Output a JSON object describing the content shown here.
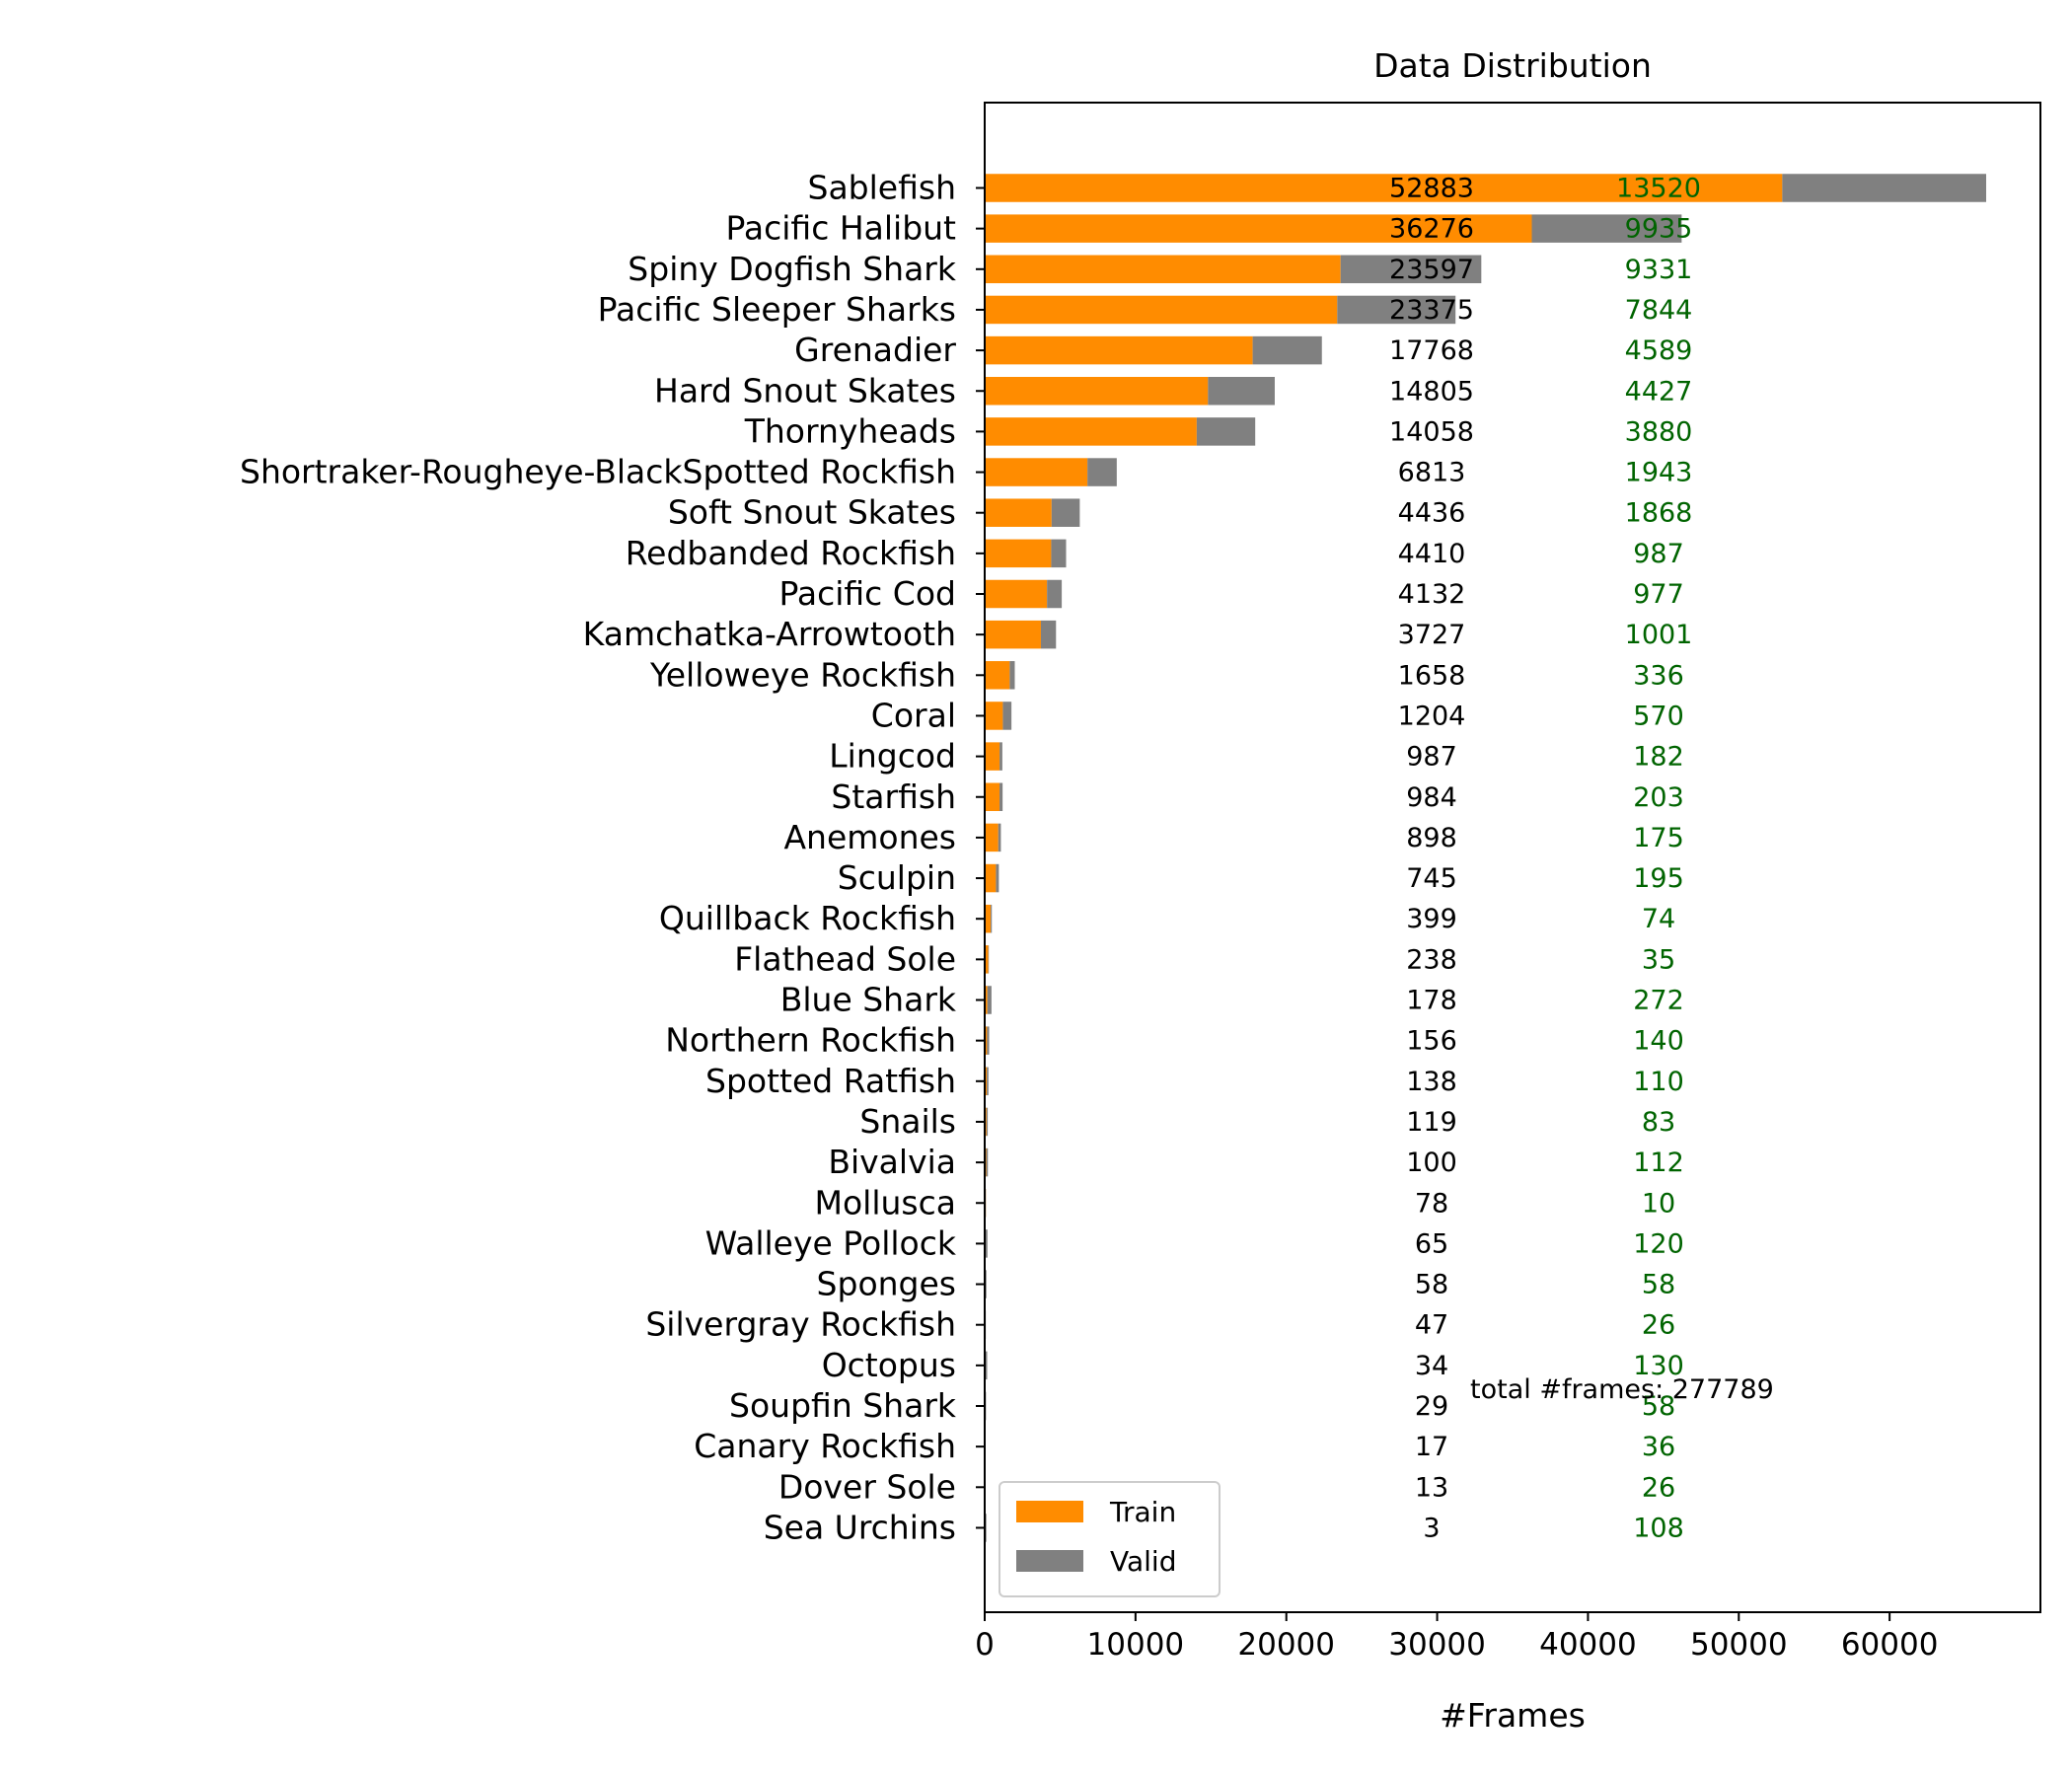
{
  "chart_data": {
    "type": "bar",
    "orientation": "horizontal",
    "stacked": true,
    "title": "Data Distribution",
    "xlabel": "#Frames",
    "ylabel": "",
    "xlim": [
      0,
      70000
    ],
    "xticks": [
      0,
      10000,
      20000,
      30000,
      40000,
      50000,
      60000
    ],
    "grid": false,
    "legend_position": "lower-left",
    "annotation": "total #frames: 277789",
    "categories": [
      "Sablefish",
      "Pacific Halibut",
      "Spiny Dogfish Shark",
      "Pacific Sleeper Sharks",
      "Grenadier",
      "Hard Snout Skates",
      "Thornyheads",
      "Shortraker-Rougheye-BlackSpotted Rockfish",
      "Soft Snout Skates",
      "Redbanded Rockfish",
      "Pacific Cod",
      "Kamchatka-Arrowtooth",
      "Yelloweye Rockfish",
      "Coral",
      "Lingcod",
      "Starfish",
      "Anemones",
      "Sculpin",
      "Quillback Rockfish",
      "Flathead Sole",
      "Blue Shark",
      "Northern Rockfish",
      "Spotted Ratfish",
      "Snails",
      "Bivalvia",
      "Mollusca",
      "Walleye Pollock",
      "Sponges",
      "Silvergray Rockfish",
      "Octopus",
      "Soupfin Shark",
      "Canary Rockfish",
      "Dover Sole",
      "Sea Urchins"
    ],
    "series": [
      {
        "name": "Train",
        "color": "#ff8c00",
        "label_color": "#000000",
        "values": [
          52883,
          36276,
          23597,
          23375,
          17768,
          14805,
          14058,
          6813,
          4436,
          4410,
          4132,
          3727,
          1658,
          1204,
          987,
          984,
          898,
          745,
          399,
          238,
          178,
          156,
          138,
          119,
          100,
          78,
          65,
          58,
          47,
          34,
          29,
          17,
          13,
          3
        ]
      },
      {
        "name": "Valid",
        "color": "#808080",
        "label_color": "#006400",
        "values": [
          13520,
          9935,
          9331,
          7844,
          4589,
          4427,
          3880,
          1943,
          1868,
          987,
          977,
          1001,
          336,
          570,
          182,
          203,
          175,
          195,
          74,
          35,
          272,
          140,
          110,
          83,
          112,
          10,
          120,
          58,
          26,
          130,
          58,
          36,
          26,
          108
        ]
      }
    ]
  }
}
